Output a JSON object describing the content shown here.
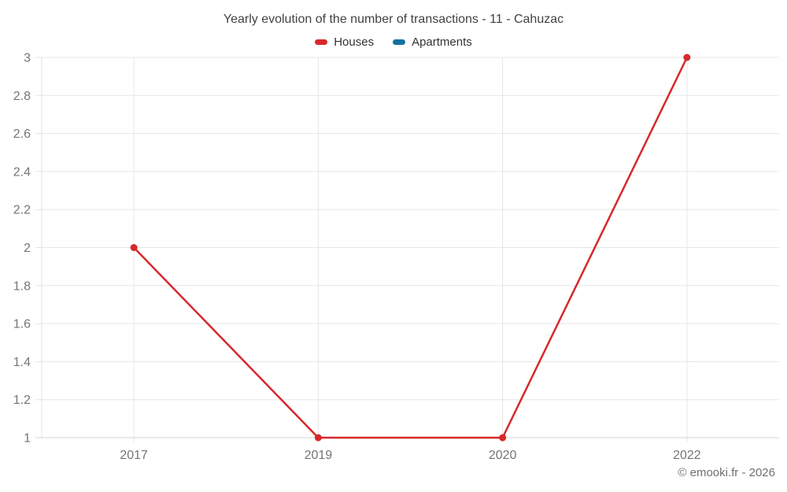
{
  "chart_data": {
    "type": "line",
    "title": "Yearly evolution of the number of transactions - 11 - Cahuzac",
    "categories": [
      "2017",
      "2019",
      "2020",
      "2022"
    ],
    "series": [
      {
        "name": "Houses",
        "color": "#d7282c",
        "values": [
          2,
          1,
          1,
          3
        ]
      },
      {
        "name": "Apartments",
        "color": "#1272a2",
        "values": [
          null,
          null,
          null,
          null
        ]
      }
    ],
    "xlabel": "",
    "ylabel": "",
    "ylim": [
      1,
      3
    ],
    "ytick_step": 0.2,
    "ytick_labels": [
      "1",
      "1.2",
      "1.4",
      "1.6",
      "1.8",
      "2",
      "2.2",
      "2.4",
      "2.6",
      "2.8",
      "3"
    ],
    "grid": true,
    "legend_position": "top"
  },
  "attribution": {
    "text": "© emooki.fr - 2026"
  },
  "colors": {
    "grid_line": "#e6e6e6",
    "bottom_axis_line": "#d4d4d4",
    "left_axis_line": "#e0e0e0",
    "tick_label": "#757575",
    "title_text": "#424242",
    "legend_text": "#333333"
  }
}
